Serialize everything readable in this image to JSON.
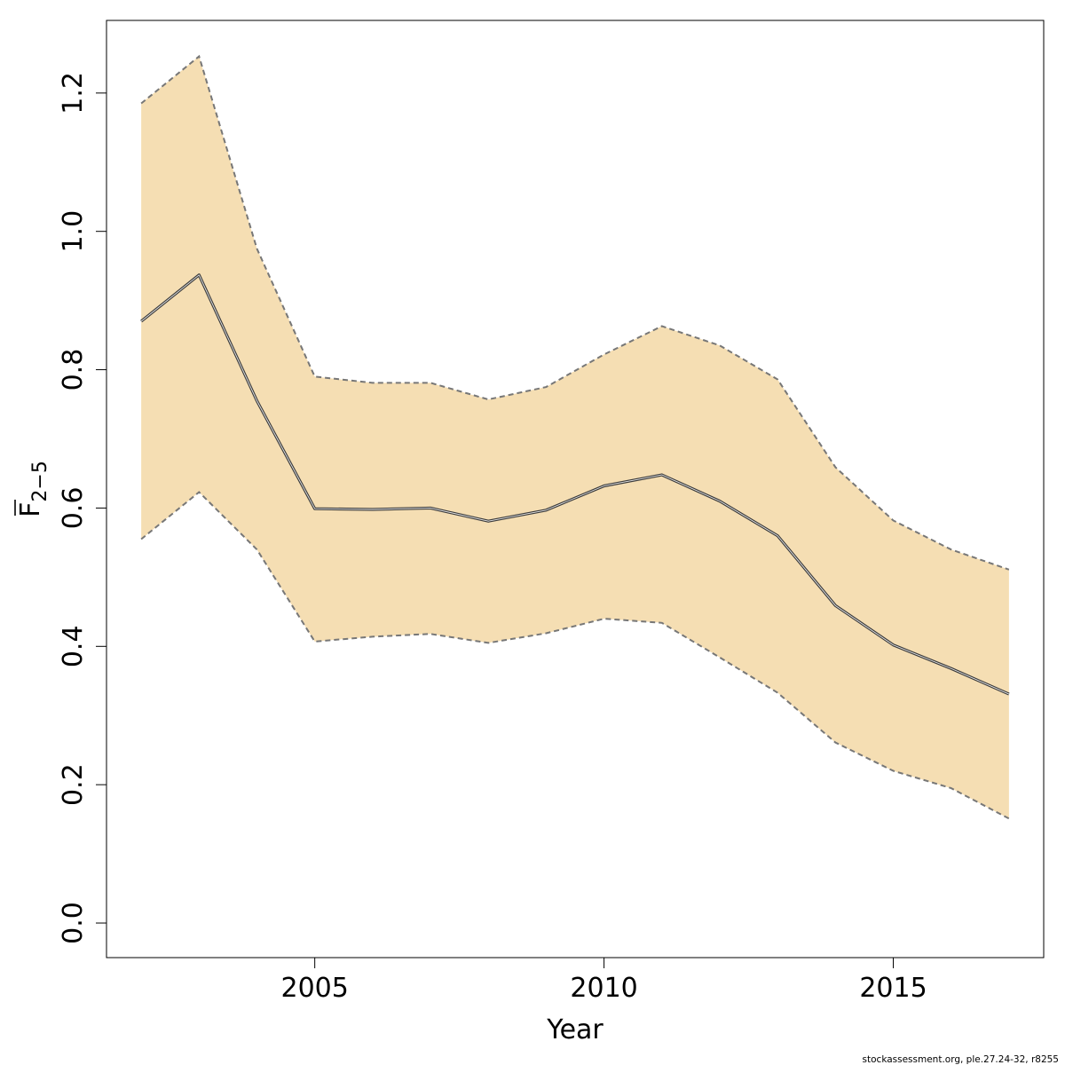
{
  "chart_data": {
    "type": "line",
    "xlabel": "Year",
    "ylabel": {
      "main": "F",
      "overline": true,
      "subscript": "2−5"
    },
    "xlim": [
      2001.4,
      2017.6
    ],
    "ylim": [
      -0.05,
      1.305
    ],
    "x_ticks": [
      2005,
      2010,
      2015
    ],
    "x_tick_labels": [
      "2005",
      "2010",
      "2015"
    ],
    "y_ticks": [
      0.0,
      0.2,
      0.4,
      0.6,
      0.8,
      1.0,
      1.2
    ],
    "y_tick_labels": [
      "0.0",
      "0.2",
      "0.4",
      "0.6",
      "0.8",
      "1.0",
      "1.2"
    ],
    "grid": false,
    "legend": "none",
    "x": [
      2002,
      2003,
      2004,
      2005,
      2006,
      2007,
      2008,
      2009,
      2010,
      2011,
      2012,
      2013,
      2014,
      2015,
      2016,
      2017
    ],
    "series": [
      {
        "role": "estimate",
        "values": [
          0.87,
          0.937,
          0.755,
          0.599,
          0.598,
          0.6,
          0.581,
          0.597,
          0.632,
          0.648,
          0.61,
          0.56,
          0.459,
          0.402,
          0.368,
          0.331
        ]
      },
      {
        "role": "lower",
        "values": [
          0.555,
          0.623,
          0.54,
          0.407,
          0.414,
          0.418,
          0.405,
          0.419,
          0.44,
          0.434,
          0.384,
          0.333,
          0.261,
          0.22,
          0.195,
          0.151
        ]
      },
      {
        "role": "upper",
        "values": [
          1.185,
          1.253,
          0.975,
          0.79,
          0.781,
          0.781,
          0.757,
          0.775,
          0.822,
          0.863,
          0.835,
          0.786,
          0.659,
          0.582,
          0.54,
          0.511
        ]
      }
    ],
    "colors": {
      "band_fill": "#f5deb3",
      "estimate_line": "#3b3b3b",
      "bound_line": "#777777",
      "axis": "#000000"
    },
    "credit": "stockassessment.org, ple.27.24-32, r8255"
  }
}
